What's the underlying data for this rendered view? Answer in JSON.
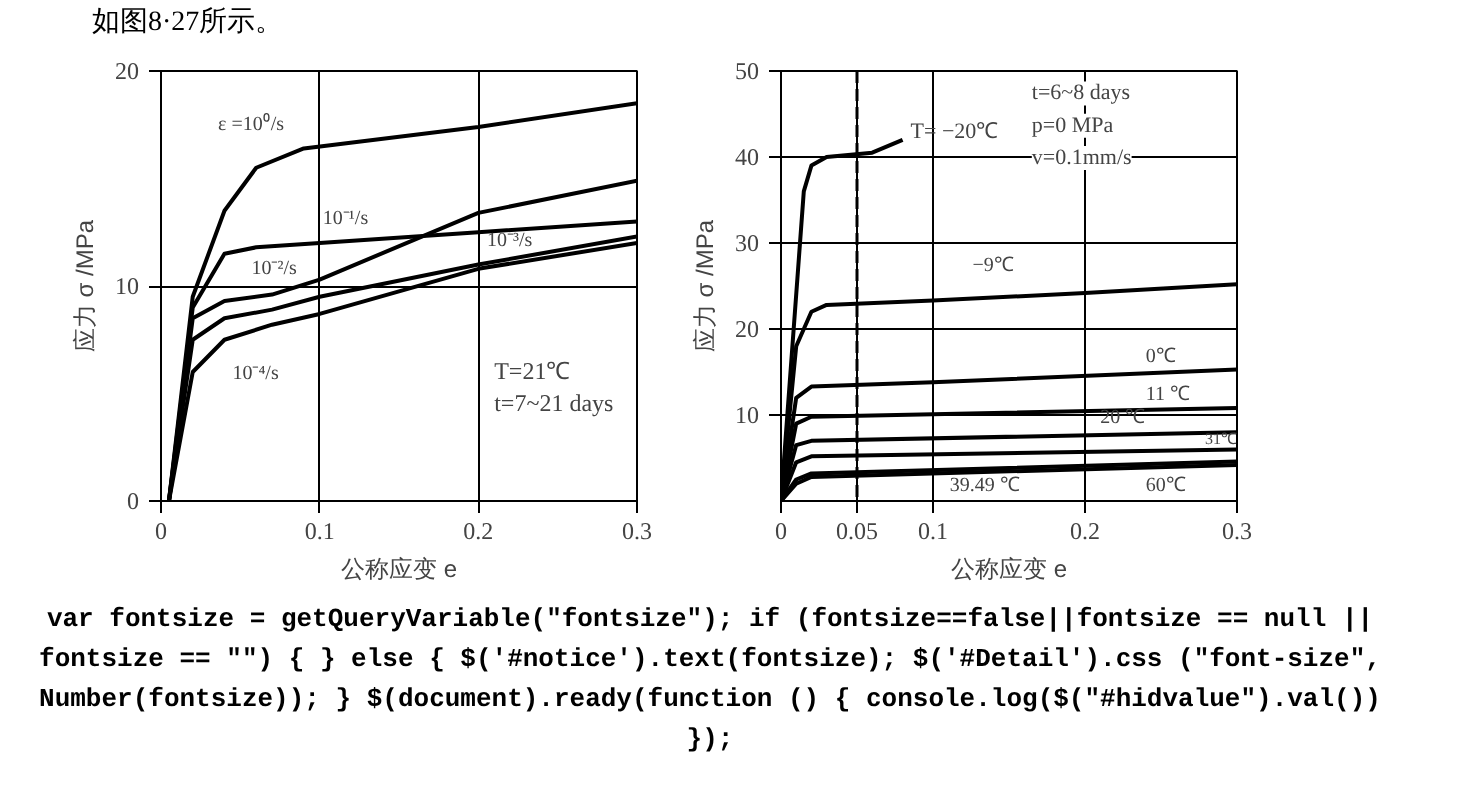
{
  "chart_data": [
    {
      "type": "line",
      "title": "如图8·27所示。",
      "xlabel": "公称应变 e",
      "ylabel": "应力 σ /MPa",
      "xlim": [
        0,
        0.3
      ],
      "ylim": [
        0,
        20
      ],
      "xticks": [
        0,
        0.1,
        0.2,
        0.3
      ],
      "yticks": [
        0,
        10,
        20
      ],
      "grid": true,
      "annotations": [
        "T=21℃",
        "t=7~21 days"
      ],
      "series": [
        {
          "name": "ε =10⁰/s",
          "color": "#000000",
          "x": [
            0.005,
            0.02,
            0.04,
            0.06,
            0.09,
            0.2,
            0.3
          ],
          "values": [
            0,
            9.5,
            13.5,
            15.5,
            16.4,
            17.4,
            18.5
          ]
        },
        {
          "name": "10⁻¹/s",
          "color": "#000000",
          "x": [
            0.005,
            0.02,
            0.04,
            0.06,
            0.1,
            0.2,
            0.3
          ],
          "values": [
            0,
            9,
            11.5,
            11.8,
            12,
            12.5,
            13
          ]
        },
        {
          "name": "10⁻²/s",
          "color": "#000000",
          "x": [
            0.005,
            0.02,
            0.04,
            0.07,
            0.1,
            0.2,
            0.3
          ],
          "values": [
            0,
            8.5,
            9.3,
            9.6,
            10.3,
            13.4,
            14.9
          ]
        },
        {
          "name": "10⁻³/s",
          "color": "#000000",
          "x": [
            0.005,
            0.02,
            0.04,
            0.07,
            0.1,
            0.2,
            0.3
          ],
          "values": [
            0,
            7.5,
            8.5,
            8.9,
            9.5,
            11,
            12.3
          ]
        },
        {
          "name": "10⁻⁴/s",
          "color": "#000000",
          "x": [
            0.005,
            0.02,
            0.04,
            0.07,
            0.1,
            0.2,
            0.3
          ],
          "values": [
            0,
            6,
            7.5,
            8.2,
            8.7,
            10.8,
            12
          ]
        }
      ]
    },
    {
      "type": "line",
      "xlabel": "公称应变 e",
      "ylabel": "应力 σ /MPa",
      "xlim": [
        0,
        0.3
      ],
      "ylim": [
        0,
        50
      ],
      "xticks": [
        0,
        0.05,
        0.1,
        0.2,
        0.3
      ],
      "yticks": [
        10,
        20,
        30,
        40,
        50
      ],
      "grid": true,
      "annotations": [
        "t=6~8 days",
        "p=0   MPa",
        "v=0.1mm/s"
      ],
      "ref_lines": [
        {
          "axis": "x",
          "value": 0.05,
          "line_style": "dashed",
          "color": "#000000"
        }
      ],
      "series": [
        {
          "name": "T= −20℃",
          "color": "#000000",
          "x": [
            0,
            0.015,
            0.02,
            0.03,
            0.06,
            0.08
          ],
          "values": [
            0,
            36,
            39,
            40,
            40.5,
            42
          ]
        },
        {
          "name": "−9℃",
          "color": "#000000",
          "x": [
            0,
            0.01,
            0.02,
            0.03,
            0.1,
            0.2,
            0.3
          ],
          "values": [
            0,
            18,
            22,
            22.8,
            23.3,
            24.2,
            25.2
          ]
        },
        {
          "name": "0℃",
          "color": "#000000",
          "x": [
            0,
            0.01,
            0.02,
            0.1,
            0.3
          ],
          "values": [
            0,
            12,
            13.3,
            13.8,
            15.3
          ]
        },
        {
          "name": "11 ℃",
          "color": "#000000",
          "x": [
            0,
            0.01,
            0.02,
            0.3
          ],
          "values": [
            0,
            9,
            9.8,
            10.8
          ]
        },
        {
          "name": "20 ℃",
          "color": "#000000",
          "x": [
            0,
            0.01,
            0.02,
            0.3
          ],
          "values": [
            0,
            6.5,
            7,
            8
          ]
        },
        {
          "name": "31℃",
          "color": "#000000",
          "x": [
            0,
            0.01,
            0.02,
            0.3
          ],
          "values": [
            0,
            4.5,
            5.2,
            6
          ]
        },
        {
          "name": "39.49 ℃",
          "color": "#000000",
          "x": [
            0,
            0.01,
            0.02,
            0.3
          ],
          "values": [
            0,
            2.5,
            3.2,
            4.6
          ]
        },
        {
          "name": "60℃",
          "color": "#000000",
          "x": [
            0,
            0.01,
            0.02,
            0.3
          ],
          "values": [
            0,
            2,
            2.8,
            4.2
          ]
        }
      ]
    },
    {
      "type": "other",
      "annotations": [
        "var fontsize = getQueryVariable(\"fontsize\"); if (fontsize==false||fontsize == null || fontsize == \"\") { } else { $('#notice').text(fontsize); $('#Detail').css (\"font-size\", Number(fontsize)); } $(document).ready(function () { console.log($(\"#hidvalue\").val()) });"
      ]
    }
  ]
}
